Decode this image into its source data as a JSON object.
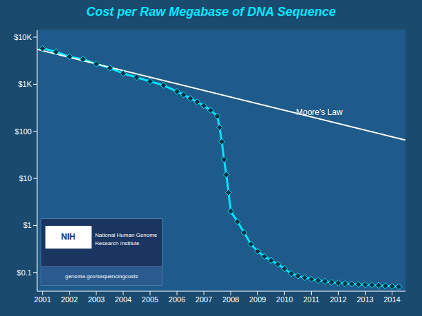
{
  "chart_data": {
    "type": "line",
    "title": "Cost per Raw Megabase of DNA Sequence",
    "log": "y",
    "grid": "y",
    "xlim": [
      2000.8,
      2014.5
    ],
    "xticks": [
      2001,
      2002,
      2003,
      2004,
      2005,
      2006,
      2007,
      2008,
      2009,
      2010,
      2011,
      2012,
      2013,
      2014
    ],
    "ylim": [
      0.04,
      14000
    ],
    "yticks": [
      {
        "value": 0.1,
        "label": "$0.1"
      },
      {
        "value": 1,
        "label": "$1"
      },
      {
        "value": 10,
        "label": "$10"
      },
      {
        "value": 100,
        "label": "$100"
      },
      {
        "value": 1000,
        "label": "$1K"
      },
      {
        "value": 10000,
        "label": "$10K"
      }
    ],
    "series": [
      {
        "color": "#00E5FF",
        "marker": "diamond",
        "line_style": "solid",
        "x": [
          2001,
          2001.5,
          2002,
          2002.5,
          2003,
          2003.5,
          2004,
          2004.5,
          2005,
          2005.5,
          2006,
          2006.25,
          2006.5,
          2006.75,
          2007,
          2007.25,
          2007.5,
          2007.583,
          2007.667,
          2007.75,
          2007.833,
          2007.917,
          2008,
          2008.25,
          2008.5,
          2008.75,
          2009,
          2009.25,
          2009.5,
          2009.75,
          2010,
          2010.25,
          2010.5,
          2010.75,
          2011,
          2011.25,
          2011.5,
          2011.75,
          2012,
          2012.25,
          2012.5,
          2012.75,
          2013,
          2013.25,
          2013.5,
          2013.75,
          2014,
          2014.25
        ],
        "values": [
          5776,
          4900,
          3846,
          3400,
          2700,
          2200,
          1700,
          1400,
          1150,
          950,
          700,
          600,
          500,
          420,
          350,
          280,
          210,
          120,
          60,
          25,
          12,
          5,
          2.0,
          1.2,
          0.7,
          0.4,
          0.28,
          0.22,
          0.18,
          0.15,
          0.12,
          0.095,
          0.085,
          0.078,
          0.072,
          0.068,
          0.065,
          0.062,
          0.06,
          0.058,
          0.057,
          0.056,
          0.055,
          0.054,
          0.053,
          0.052,
          0.051,
          0.05
        ]
      },
      {
        "color": "#ffffff",
        "line_style": "solid",
        "x": [
          2000.8,
          2014.5
        ],
        "values": [
          5500,
          65
        ]
      }
    ],
    "annotations": [
      {
        "text": "Moore's Law",
        "x": 2010.3,
        "y": 260,
        "color": "#ffffff"
      },
      {
        "text": "NIH"
      },
      {
        "text": "National Human Genome"
      },
      {
        "text": "Research Institute"
      },
      {
        "text": "genome.gov/sequencingcosts"
      }
    ]
  }
}
